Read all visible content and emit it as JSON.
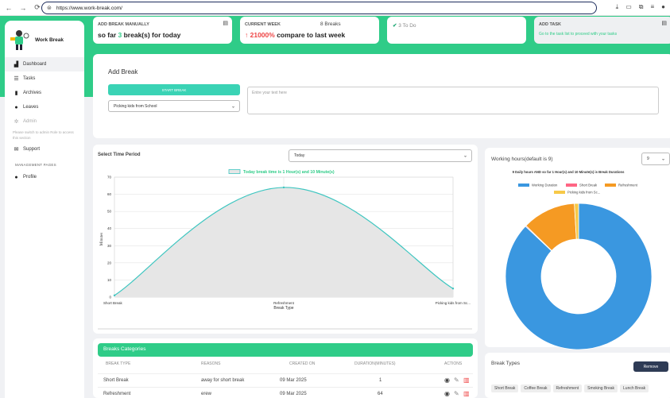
{
  "browser": {
    "url": "https://www.work-break.com/"
  },
  "app": {
    "name": "Work Break"
  },
  "sidebar": {
    "items": [
      {
        "label": "Dashboard",
        "icon": "dashboard-icon"
      },
      {
        "label": "Tasks",
        "icon": "list-icon"
      },
      {
        "label": "Archives",
        "icon": "archive-icon"
      },
      {
        "label": "Leaves",
        "icon": "leaf-icon"
      },
      {
        "label": "Admin",
        "icon": "admin-icon"
      },
      {
        "label": "Support",
        "icon": "support-icon"
      },
      {
        "label": "Profile",
        "icon": "user-icon"
      }
    ],
    "admin_note": "Please switch to admin Role to access this section",
    "section_title": "MANAGEMENT PAGES"
  },
  "cards": {
    "add_break": {
      "title": "ADD BREAK MANUALLY",
      "text_prefix": "so far ",
      "count": "3",
      "text_suffix": " break(s) for today"
    },
    "current_week": {
      "title": "CURRENT WEEK",
      "breaks": "8 Breaks",
      "arrow": "↑",
      "percent": "21000%",
      "compare": " compare to last week"
    },
    "todo": {
      "label": "3 To Do"
    },
    "add_task": {
      "title": "ADD TASK",
      "subtitle": "Go to the task list to proceed with your tasks"
    }
  },
  "add_break_panel": {
    "title": "Add Break",
    "start_button": "START BREAK",
    "reason_select": "Picking kids from School",
    "text_placeholder": "Entre your text here"
  },
  "period_panel": {
    "label": "Select Time Period",
    "period_select": "Today"
  },
  "line_chart_text": {
    "xlabel": "Break Type",
    "ylabel": "Minutes"
  },
  "working_panel": {
    "label": "Working hours(default is 9)",
    "hours_select": "9",
    "chart_title": "9 Daily hours AND so far 1 Hour(s) and 10 Minute(s) is Break Durations"
  },
  "categories_panel": {
    "title": "Breaks Categories",
    "columns": [
      "BREAK TYPE",
      "REASONS",
      "CREATED ON",
      "DURATION(MINUTES)",
      "ACTIONS"
    ],
    "rows": [
      {
        "type": "Short Break",
        "reason": "away for short break",
        "created": "09 Mar 2025",
        "duration": "1"
      },
      {
        "type": "Refreshment",
        "reason": "erew",
        "created": "09 Mar 2025",
        "duration": "64"
      }
    ]
  },
  "break_types_panel": {
    "title": "Break Types",
    "remove_button": "Remove",
    "tags": [
      "Short Break",
      "Coffee Break",
      "Refreshment",
      "Smoking Break",
      "Lunch Break"
    ]
  },
  "chart_data": [
    {
      "type": "line",
      "title": "Today break time is 1 Hour(s) and 10 Minute(s)",
      "xlabel": "Break Type",
      "ylabel": "Minutes",
      "categories": [
        "Short Break",
        "Refreshment",
        "Picking kids from Sc..."
      ],
      "series": [
        {
          "name": "Today break time is 1 Hour(s) and 10 Minute(s)",
          "values": [
            1,
            64,
            5
          ]
        }
      ],
      "ylim": [
        0,
        70
      ],
      "yticks": [
        0,
        10,
        20,
        30,
        40,
        50,
        60,
        70
      ],
      "colors": {
        "line": "#3ec6c0",
        "fill": "#e6e6e6"
      }
    },
    {
      "type": "pie",
      "title": "9 Daily hours AND so far 1 Hour(s) and 10 Minute(s) is Break Durations",
      "legend": [
        "Working Duration",
        "Short Break",
        "Refreshment",
        "Picking kids from Sc..."
      ],
      "values": [
        470,
        1,
        64,
        5
      ],
      "colors": [
        "#3a97e0",
        "#ff6584",
        "#f59a23",
        "#f7c948"
      ]
    }
  ]
}
